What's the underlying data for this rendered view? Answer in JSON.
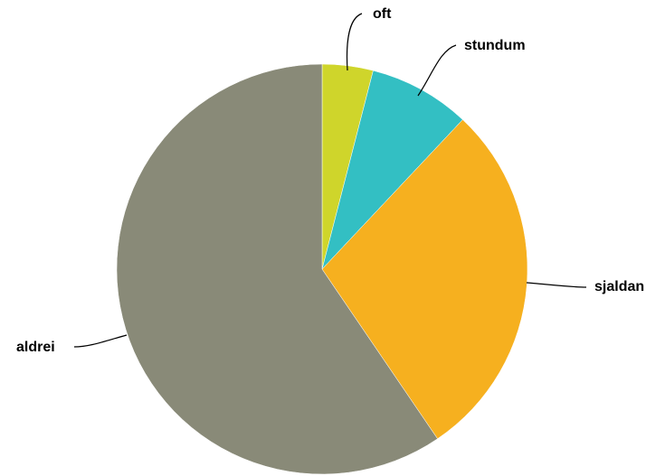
{
  "chart_data": {
    "type": "pie",
    "title": "",
    "start_angle_deg": 0,
    "direction": "clockwise",
    "slices": [
      {
        "label": "oft",
        "value": 4.0,
        "color": "#cfd52b"
      },
      {
        "label": "stundum",
        "value": 8.0,
        "color": "#33bfc3"
      },
      {
        "label": "sjaldan",
        "value": 28.5,
        "color": "#f6b01f"
      },
      {
        "label": "aldrei",
        "value": 59.5,
        "color": "#898a78"
      }
    ]
  }
}
